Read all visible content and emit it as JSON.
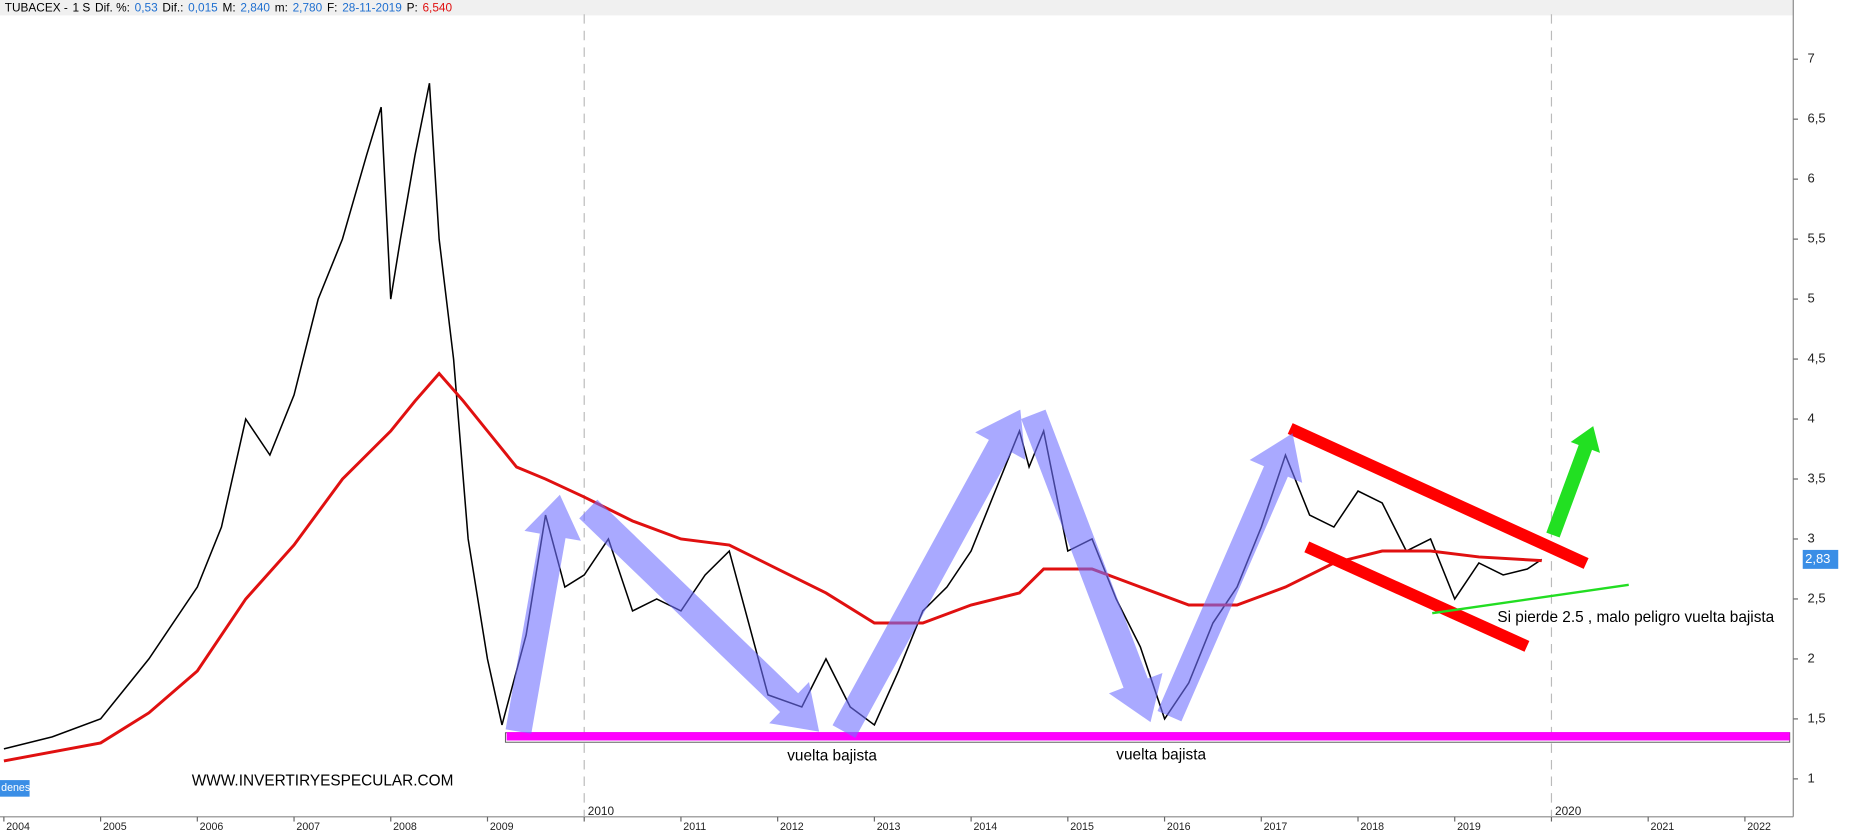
{
  "chart_data": {
    "type": "line",
    "header": {
      "name": "TUBACEX -",
      "period": "1 S",
      "fields": [
        {
          "label": "Dif. %:",
          "value": "0,53"
        },
        {
          "label": "Dif.:",
          "value": "0,015"
        },
        {
          "label": "M:",
          "value": "2,840"
        },
        {
          "label": "m:",
          "value": "2,780"
        },
        {
          "label": "F:",
          "value": "28-11-2019"
        },
        {
          "label": "P:",
          "value": "6,540"
        }
      ]
    },
    "xlim": [
      2003.96,
      2022.5
    ],
    "xticks": [
      2004,
      2005,
      2006,
      2007,
      2008,
      2009,
      2010,
      2011,
      2012,
      2013,
      2014,
      2015,
      2016,
      2017,
      2018,
      2019,
      2020,
      2021,
      2022
    ],
    "ylim": [
      0.684,
      7.375
    ],
    "yticks": [
      1,
      {
        "value": 1.5,
        "label": "1,5"
      },
      2,
      {
        "value": 2.5,
        "label": "2,5"
      },
      3,
      {
        "value": 3.5,
        "label": "3,5"
      },
      4,
      {
        "value": 4.5,
        "label": "4,5"
      },
      5,
      {
        "value": 5.5,
        "label": "5,5"
      },
      6,
      {
        "value": 6.5,
        "label": "6,5"
      },
      7
    ],
    "series": [
      {
        "name": "TUBACEX",
        "color": "#000000",
        "x": [
          2004,
          2004.5,
          2005,
          2005.5,
          2006,
          2006.25,
          2006.5,
          2006.75,
          2007,
          2007.25,
          2007.5,
          2007.75,
          2007.9,
          2008,
          2008.1,
          2008.25,
          2008.4,
          2008.5,
          2008.65,
          2008.8,
          2009,
          2009.15,
          2009.4,
          2009.6,
          2009.8,
          2010,
          2010.25,
          2010.5,
          2010.75,
          2011,
          2011.25,
          2011.5,
          2011.7,
          2011.9,
          2012.25,
          2012.5,
          2012.75,
          2013,
          2013.25,
          2013.5,
          2013.75,
          2014,
          2014.25,
          2014.5,
          2014.6,
          2014.75,
          2015,
          2015.25,
          2015.5,
          2015.75,
          2016,
          2016.25,
          2016.5,
          2016.75,
          2017,
          2017.25,
          2017.5,
          2017.75,
          2018,
          2018.25,
          2018.5,
          2018.75,
          2019,
          2019.25,
          2019.5,
          2019.75,
          2019.9
        ],
        "values": [
          1.25,
          1.35,
          1.5,
          2.0,
          2.6,
          3.1,
          4.0,
          3.7,
          4.2,
          5.0,
          5.5,
          6.2,
          6.6,
          5.0,
          5.5,
          6.2,
          6.8,
          5.5,
          4.5,
          3.0,
          2.0,
          1.45,
          2.2,
          3.2,
          2.6,
          2.7,
          3.0,
          2.4,
          2.5,
          2.4,
          2.7,
          2.9,
          2.3,
          1.7,
          1.6,
          2.0,
          1.6,
          1.45,
          1.9,
          2.4,
          2.6,
          2.9,
          3.4,
          3.9,
          3.6,
          3.9,
          2.9,
          3.0,
          2.5,
          2.1,
          1.5,
          1.8,
          2.3,
          2.6,
          3.1,
          3.7,
          3.2,
          3.1,
          3.4,
          3.3,
          2.9,
          3.0,
          2.5,
          2.8,
          2.7,
          2.75,
          2.83
        ]
      },
      {
        "name": "MA",
        "color": "#e01010",
        "x": [
          2004,
          2005,
          2005.5,
          2006,
          2006.5,
          2007,
          2007.5,
          2008,
          2008.25,
          2008.5,
          2008.75,
          2009,
          2009.3,
          2009.6,
          2010,
          2010.5,
          2011,
          2011.5,
          2012,
          2012.5,
          2013,
          2013.5,
          2014,
          2014.5,
          2014.75,
          2015.25,
          2015.75,
          2016.25,
          2016.75,
          2017.25,
          2017.75,
          2018.25,
          2018.75,
          2019.25,
          2019.9
        ],
        "values": [
          1.15,
          1.3,
          1.55,
          1.9,
          2.5,
          2.95,
          3.5,
          3.9,
          4.15,
          4.38,
          4.15,
          3.9,
          3.6,
          3.5,
          3.35,
          3.15,
          3.0,
          2.95,
          2.75,
          2.55,
          2.3,
          2.3,
          2.45,
          2.55,
          2.75,
          2.75,
          2.6,
          2.45,
          2.45,
          2.6,
          2.8,
          2.9,
          2.9,
          2.85,
          2.82
        ]
      }
    ],
    "last_price": {
      "value": 2.83,
      "label": "2,83"
    },
    "annotations": [
      "vuelta bajista",
      "vuelta bajista",
      "Si pierde 2.5 , malo peligro vuelta bajista",
      "WWW.INVERTIRYESPECULAR.COM"
    ],
    "tab_label": "denes"
  }
}
